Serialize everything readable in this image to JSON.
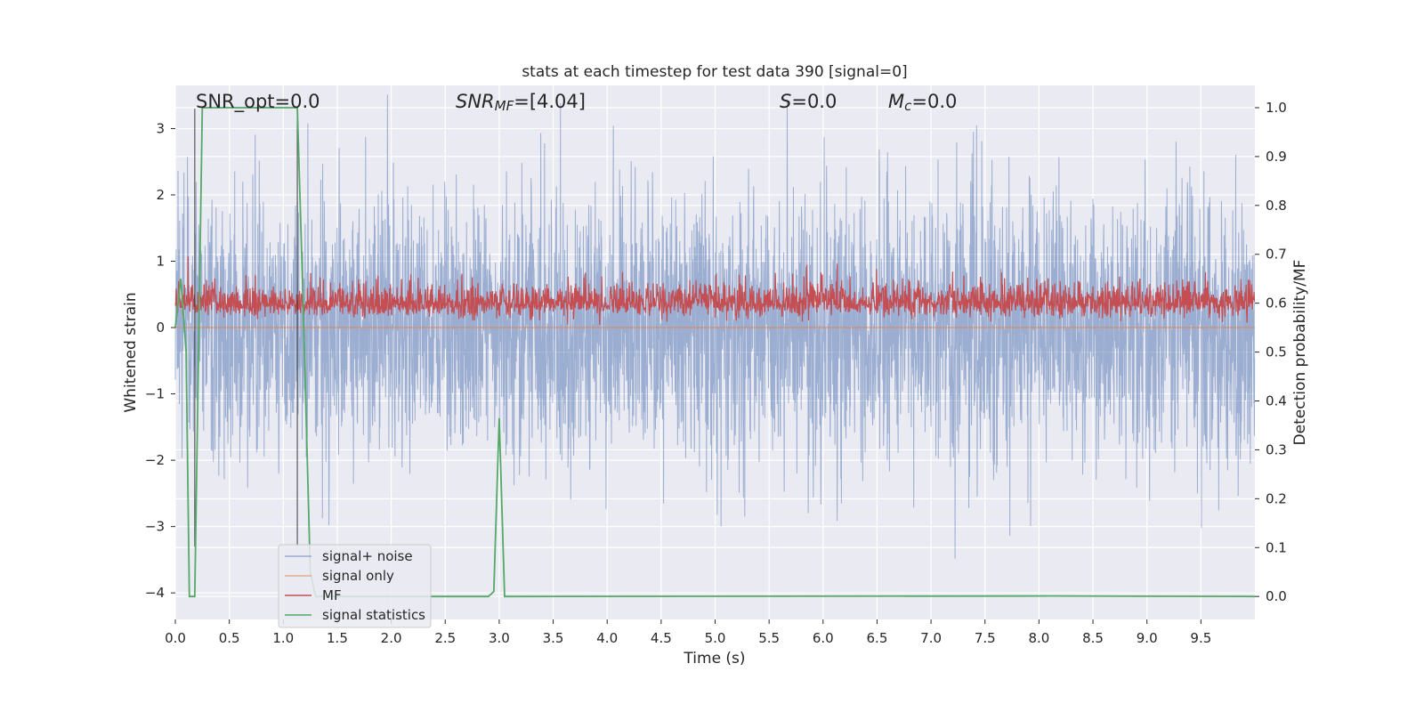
{
  "chart_data": {
    "type": "line",
    "title": "stats at each timestep for test data 390 [signal=0]",
    "xlabel": "Time (s)",
    "ylabel_left": "Whitened strain",
    "ylabel_right": "Detection probability/MF",
    "xlim": [
      0.0,
      10.0
    ],
    "ylim_left": [
      -4.4,
      3.65
    ],
    "ylim_right": [
      -0.047,
      1.0455
    ],
    "x_ticks": [
      "0.0",
      "0.5",
      "1.0",
      "1.5",
      "2.0",
      "2.5",
      "3.0",
      "3.5",
      "4.0",
      "4.5",
      "5.0",
      "5.5",
      "6.0",
      "6.5",
      "7.0",
      "7.5",
      "8.0",
      "8.5",
      "9.0",
      "9.5"
    ],
    "y_ticks_left": [
      "−4",
      "−3",
      "−2",
      "−1",
      "0",
      "1",
      "2",
      "3"
    ],
    "y_ticks_right": [
      "0.0",
      "0.1",
      "0.2",
      "0.3",
      "0.4",
      "0.5",
      "0.6",
      "0.7",
      "0.8",
      "0.9",
      "1.0"
    ],
    "grid": true,
    "legend": "lower-left",
    "annotations": {
      "snr_opt": "SNR_opt=0.0",
      "snr_mf_sym": "SNR",
      "snr_mf_sub": "MF",
      "snr_mf_val": "=[4.04]",
      "s_sym": "S",
      "s_val": "=0.0",
      "mc_sym": "M",
      "mc_sub": "c",
      "mc_val": "=0.0"
    },
    "series": [
      {
        "name": "signal+ noise",
        "color": "#4c72b0",
        "axis": "left",
        "description_values": "noise, roughly within ±2 with spikes to ±3.6"
      },
      {
        "name": "signal only",
        "color": "#dd8452",
        "axis": "left",
        "value": 0.0
      },
      {
        "name": "MF",
        "color": "#c44e52",
        "axis": "right",
        "baseline": 0.6,
        "range": [
          0.55,
          0.7
        ]
      },
      {
        "name": "signal statistics",
        "color": "#55a868",
        "axis": "right",
        "x": [
          0.0,
          0.05,
          0.1,
          0.13,
          0.18,
          0.25,
          0.3,
          1.13,
          1.18,
          1.25,
          1.3,
          2.9,
          2.95,
          3.0,
          3.05,
          3.1,
          8.1,
          10.0
        ],
        "y": [
          0.55,
          0.65,
          0.5,
          0.0,
          0.0,
          1.0,
          1.0,
          1.0,
          0.63,
          0.05,
          0.0,
          0.0,
          0.01,
          0.365,
          0.0,
          0.0,
          0.001,
          0.0
        ]
      }
    ],
    "vertical_markers": [
      0.18,
      1.13
    ]
  }
}
